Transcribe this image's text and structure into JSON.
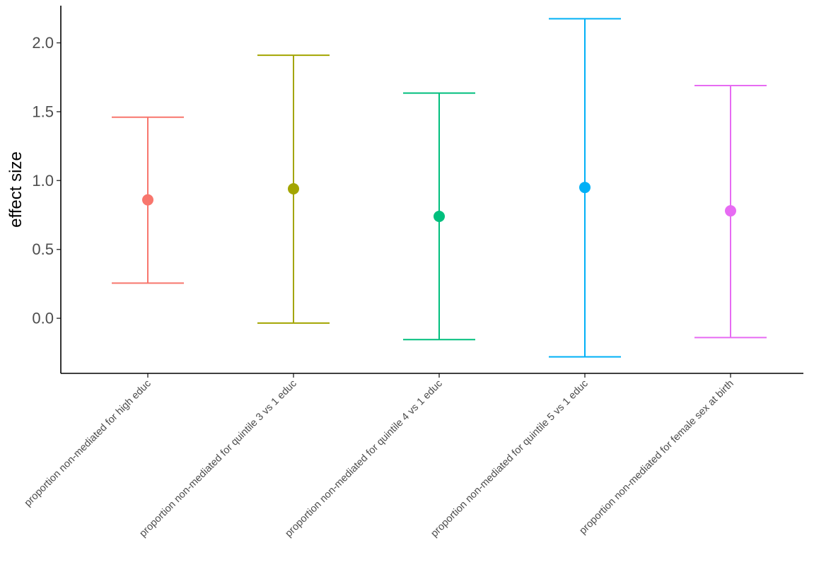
{
  "chart_data": {
    "type": "errorbar",
    "title": "",
    "xlabel": "",
    "ylabel": "effect size",
    "ylim": [
      -0.4,
      2.27
    ],
    "yticks": [
      0.0,
      0.5,
      1.0,
      1.5,
      2.0
    ],
    "ytick_labels": [
      "0.0",
      "0.5",
      "1.0",
      "1.5",
      "2.0"
    ],
    "grid": false,
    "legend": "none",
    "categories": [
      "proportion non-mediated for high educ",
      "proportion non-mediated for quintile 3 vs 1 educ",
      "proportion non-mediated for quintile 4 vs 1 educ",
      "proportion non-mediated for quintile 5 vs 1 educ",
      "proportion non-mediated for female sex at birth"
    ],
    "values": [
      0.86,
      0.94,
      0.74,
      0.95,
      0.78
    ],
    "lower": [
      0.255,
      -0.035,
      -0.155,
      -0.28,
      -0.14
    ],
    "upper": [
      1.46,
      1.91,
      1.635,
      2.175,
      1.69
    ],
    "colors": [
      "#F8766D",
      "#A3A500",
      "#00BF7D",
      "#00B0F6",
      "#E76BF3"
    ]
  }
}
